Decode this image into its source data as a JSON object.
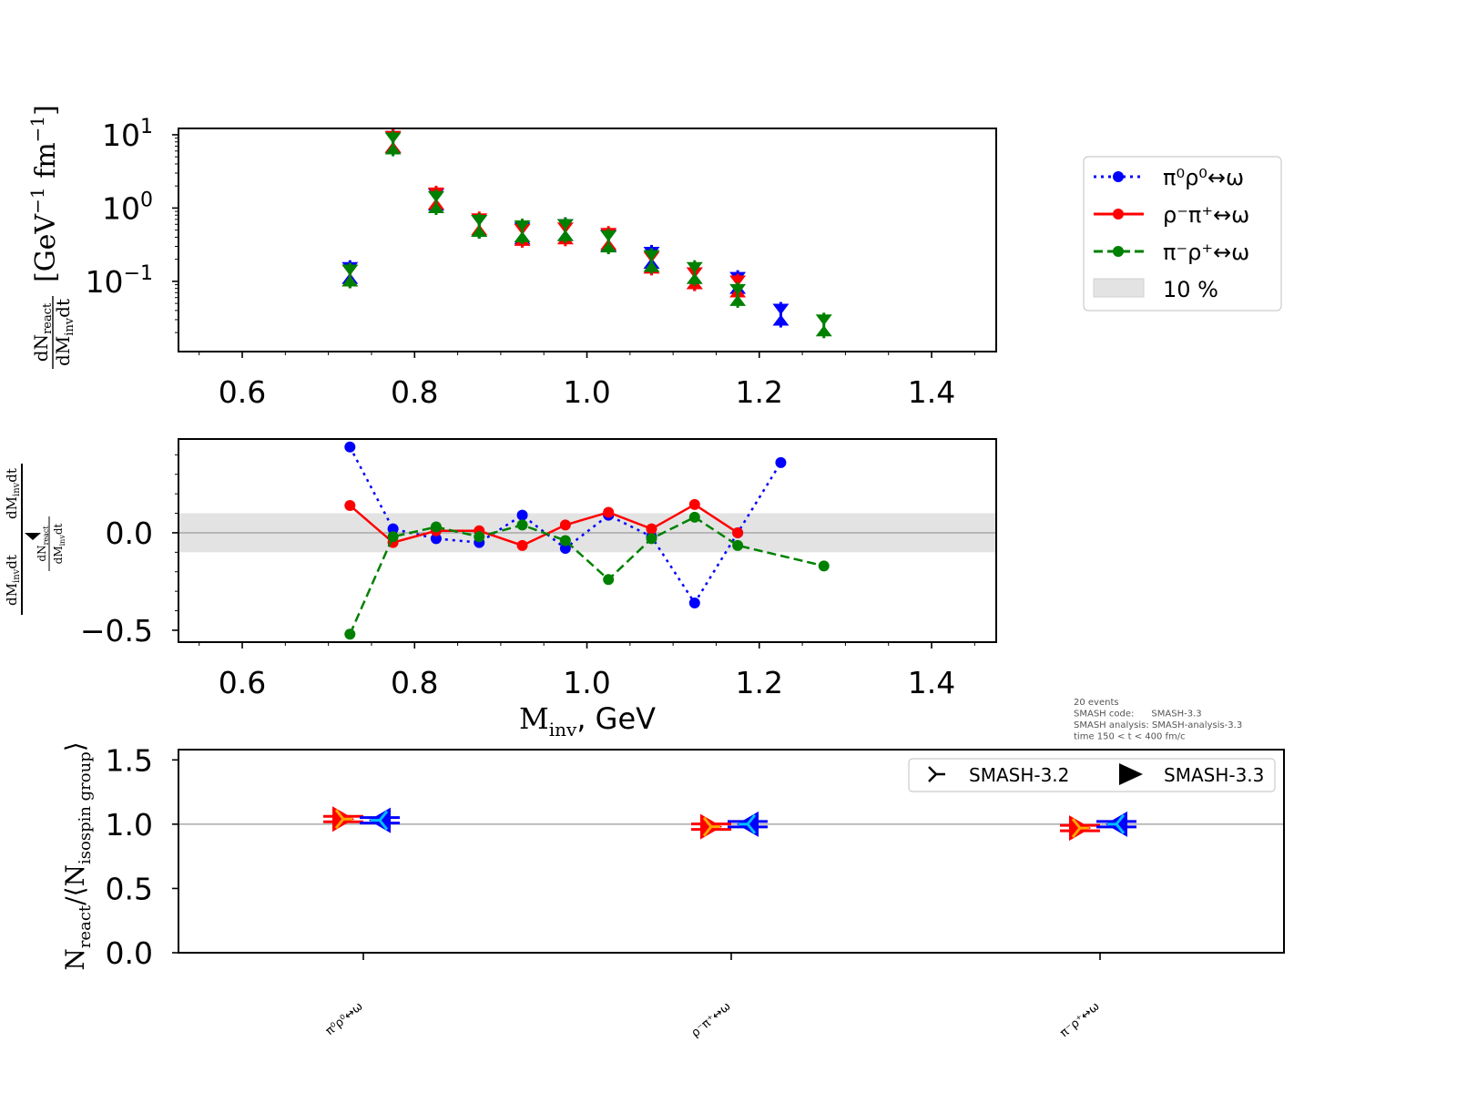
{
  "chart_data": [
    {
      "type": "scatter",
      "title": "",
      "xlabel": "",
      "ylabel": "dN_react / dM_inv dt [GeV^-1 fm^-1]",
      "ylabel_parts": {
        "num": "dN",
        "num_sub": "react",
        "den": "dM",
        "den_sub": "inv",
        "den_tail": "dt",
        "unit": "[GeV",
        "unit_exp": "−1",
        "unit_mid": " fm",
        "unit_exp2": "−1",
        "unit_end": "]"
      },
      "yscale": "log",
      "xlim": [
        0.526,
        1.475
      ],
      "ylim": [
        0.011,
        12.2
      ],
      "xticks": [
        "0.6",
        "0.8",
        "1.0",
        "1.2",
        "1.4"
      ],
      "xtick_values": [
        0.6,
        0.8,
        1.0,
        1.2,
        1.4
      ],
      "yticks": [
        {
          "base": "10",
          "exp": "1",
          "value": 10
        },
        {
          "base": "10",
          "exp": "0",
          "value": 1
        },
        {
          "base": "10",
          "exp": "−1",
          "value": 0.1
        }
      ],
      "x": [
        0.725,
        0.775,
        0.825,
        0.875,
        0.925,
        0.975,
        1.025,
        1.075,
        1.125,
        1.175,
        1.225,
        1.275
      ],
      "series": [
        {
          "name": "π⁰ρ⁰↔ω",
          "color": "#0000ff",
          "values": [
            0.13,
            8.0,
            1.3,
            0.57,
            0.45,
            0.5,
            0.36,
            0.21,
            0.11,
            0.095,
            0.035,
            null
          ]
        },
        {
          "name": "ρ⁻π⁺↔ω",
          "color": "#ff0000",
          "values": [
            0.12,
            8.0,
            1.35,
            0.6,
            0.43,
            0.45,
            0.38,
            0.18,
            0.11,
            0.085,
            null,
            null
          ]
        },
        {
          "name": "π⁻ρ⁺↔ω",
          "color": "#008000",
          "values": [
            0.12,
            7.6,
            1.2,
            0.57,
            0.48,
            0.5,
            0.35,
            0.19,
            0.13,
            0.065,
            null,
            0.025
          ]
        }
      ]
    },
    {
      "type": "line",
      "xlabel": "M_inv, GeV",
      "xlabel_parts": {
        "main": "M",
        "sub": "inv",
        "tail": ", GeV"
      },
      "ylabel": "(dN_react/dM_inv dt − ⟨dN_react/dM_inv dt⟩) / ⟨dN_react/dM_inv dt⟩",
      "ylabel_parts": {
        "left": "dM",
        "left_sub": "inv",
        "left_tail": "dt",
        "right": "dM",
        "right_sub": "inv",
        "right_tail": "dt",
        "num": "dN",
        "num_sub": "react"
      },
      "xlim": [
        0.526,
        1.475
      ],
      "ylim": [
        -0.561,
        0.481
      ],
      "xticks": [
        "0.6",
        "0.8",
        "1.0",
        "1.2",
        "1.4"
      ],
      "xtick_values": [
        0.6,
        0.8,
        1.0,
        1.2,
        1.4
      ],
      "yticks": [
        "0.0",
        "−0.5"
      ],
      "ytick_values": [
        0.0,
        -0.5
      ],
      "band": [
        -0.1,
        0.1
      ],
      "x": [
        0.725,
        0.775,
        0.825,
        0.875,
        0.925,
        0.975,
        1.025,
        1.075,
        1.125,
        1.175,
        1.225,
        1.275
      ],
      "series": [
        {
          "name": "π⁰ρ⁰↔ω",
          "color": "#0000ff",
          "style": "dotted",
          "values": [
            0.44,
            0.02,
            -0.03,
            -0.05,
            0.09,
            -0.08,
            0.09,
            -0.02,
            -0.36,
            0.0,
            0.36,
            null
          ]
        },
        {
          "name": "ρ⁻π⁺↔ω",
          "color": "#ff0000",
          "style": "solid",
          "values": [
            0.14,
            -0.05,
            0.01,
            0.01,
            -0.065,
            0.04,
            0.105,
            0.02,
            0.145,
            0.0,
            null,
            null
          ]
        },
        {
          "name": "π⁻ρ⁺↔ω",
          "color": "#008000",
          "style": "dashed",
          "values": [
            -0.52,
            -0.02,
            0.03,
            -0.02,
            0.04,
            -0.04,
            -0.24,
            -0.03,
            0.08,
            -0.065,
            null,
            -0.17
          ]
        }
      ]
    },
    {
      "type": "scatter",
      "ylabel": "N_react/⟨N_isospin group⟩",
      "ylabel_parts": {
        "n": "N",
        "n_sub": "react",
        "mid": "/⟨N",
        "mid_sub": "isospin group",
        "end": "⟩"
      },
      "ylim": [
        0.0,
        1.58
      ],
      "yticks": [
        "0.0",
        "0.5",
        "1.0",
        "1.5"
      ],
      "ytick_values": [
        0.0,
        0.5,
        1.0,
        1.5
      ],
      "categories": [
        "π⁰ρ⁰↔ω",
        "ρ⁻π⁺↔ω",
        "π⁻ρ⁺↔ω"
      ],
      "series": [
        {
          "name": "SMASH-3.2",
          "values": [
            1.04,
            0.98,
            0.97
          ]
        },
        {
          "name": "SMASH-3.3",
          "values": [
            1.03,
            1.0,
            1.0
          ]
        }
      ]
    }
  ],
  "legend": {
    "items": [
      "π⁰ρ⁰↔ω",
      "ρ⁻π⁺↔ω",
      "π⁻ρ⁺↔ω",
      "10 %"
    ],
    "placement": "right of top panel"
  },
  "version_legend": {
    "items": [
      "SMASH-3.2",
      "SMASH-3.3"
    ],
    "placement": "top-right"
  },
  "info": {
    "lines": [
      "20 events",
      "SMASH code:      SMASH-3.3",
      "SMASH analysis: SMASH-analysis-3.3",
      "time 150 < t < 400 fm/c"
    ]
  },
  "colors": {
    "blue": "#0000ff",
    "red": "#ff0000",
    "green": "#008000",
    "band": "#e3e3e3"
  }
}
